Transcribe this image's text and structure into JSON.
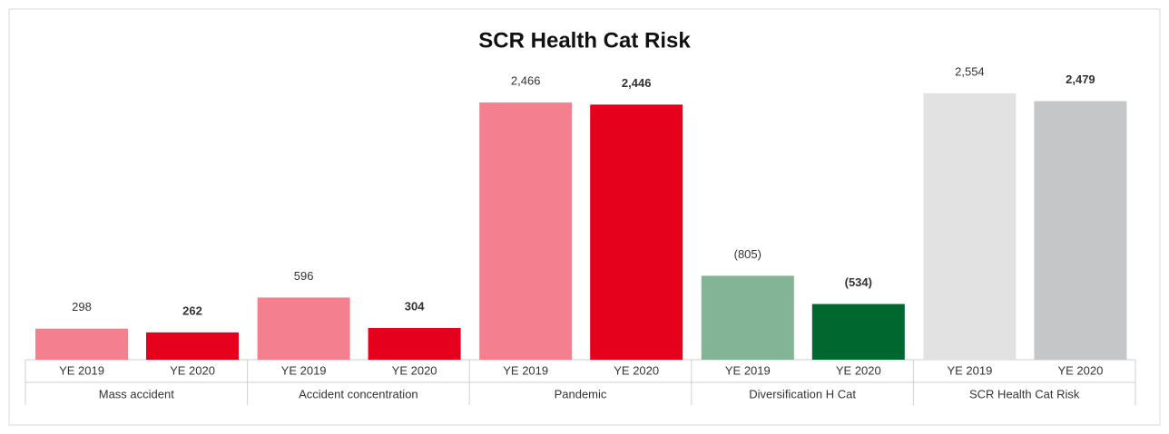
{
  "chart_data": {
    "type": "bar",
    "title": "SCR Health Cat Risk",
    "categories": [
      "Mass accident",
      "Accident concentration",
      "Pandemic",
      "Diversification H Cat",
      "SCR Health Cat Risk"
    ],
    "series": [
      {
        "name": "YE 2019",
        "colors": [
          "#f4808f",
          "#f4808f",
          "#f4808f",
          "#84b496",
          "#e1e2e1"
        ],
        "values": [
          298,
          596,
          2466,
          -805,
          2554
        ],
        "value_labels": [
          "298",
          "596",
          "2,466",
          "(805)",
          "2,554"
        ]
      },
      {
        "name": "YE 2020",
        "colors": [
          "#e5001c",
          "#e5001c",
          "#e5001c",
          "#00682f",
          "#c5c6c8"
        ],
        "values": [
          262,
          304,
          2446,
          -534,
          2479
        ],
        "value_labels": [
          "262",
          "304",
          "2,446",
          "(534)",
          "2,479"
        ]
      }
    ]
  }
}
